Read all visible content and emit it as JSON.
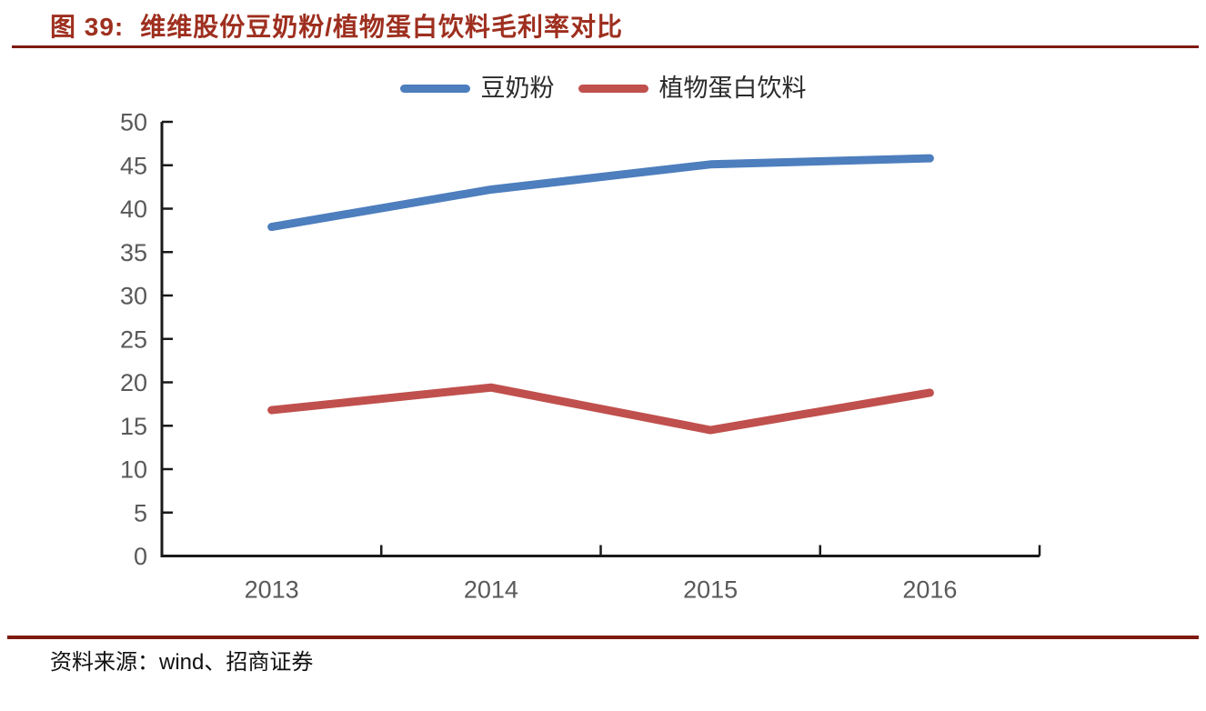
{
  "header": {
    "figure_label": "图 39:",
    "title": "维维股份豆奶粉/植物蛋白饮料毛利率对比"
  },
  "footer": {
    "source": "资料来源：wind、招商证券"
  },
  "colors": {
    "title_red": "#9e2f1f",
    "rule_red": "#7e1a10",
    "axis": "#1a1a1a",
    "tick_label": "#595959",
    "series_blue": "#4d7ebd",
    "series_red": "#c0504d"
  },
  "chart_data": {
    "type": "line",
    "title": "维维股份豆奶粉/植物蛋白饮料毛利率对比",
    "categories": [
      "2013",
      "2014",
      "2015",
      "2016"
    ],
    "series": [
      {
        "name": "豆奶粉",
        "color": "#4d7ebd",
        "values": [
          37.9,
          42.2,
          45.1,
          45.8
        ]
      },
      {
        "name": "植物蛋白饮料",
        "color": "#c0504d",
        "values": [
          16.8,
          19.4,
          14.5,
          18.8
        ]
      }
    ],
    "ylim": [
      0,
      50
    ],
    "ytick_step": 5,
    "yticks": [
      0,
      5,
      10,
      15,
      20,
      25,
      30,
      35,
      40,
      45,
      50
    ],
    "grid": false,
    "legend_position": "top-center",
    "xlabel": "",
    "ylabel": ""
  }
}
